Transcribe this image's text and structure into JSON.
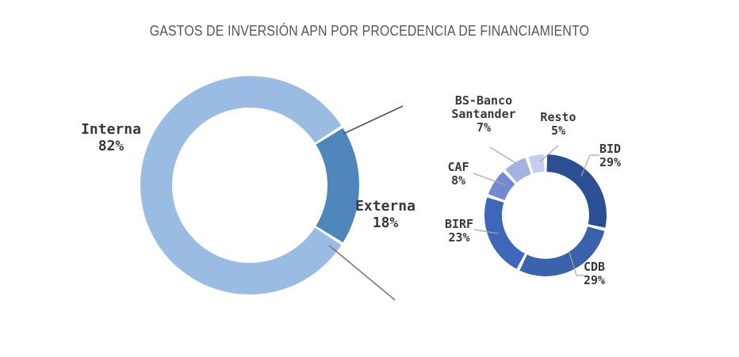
{
  "title": "GASTOS DE INVERSIÓN APN POR PROCEDENCIA DE FINANCIAMIENTO",
  "chart_data": [
    {
      "type": "pie",
      "subtype": "donut",
      "name": "gastos-por-procedencia",
      "unit": "%",
      "legend_position": "none",
      "segments": [
        {
          "label": "Interna",
          "value": 82,
          "pct": "82%",
          "color": "#9bbce2"
        },
        {
          "label": "Externa",
          "value": 18,
          "pct": "18%",
          "color": "#4d86bb"
        }
      ]
    },
    {
      "type": "pie",
      "subtype": "donut",
      "name": "detalle-financiamiento-externo",
      "unit": "%",
      "legend_position": "none",
      "segments": [
        {
          "label": "BID",
          "value": 29,
          "pct": "29%",
          "color": "#2c4f94"
        },
        {
          "label": "CDB",
          "value": 29,
          "pct": "29%",
          "color": "#3a63ac"
        },
        {
          "label": "BIRF",
          "value": 23,
          "pct": "23%",
          "color": "#3e66b9"
        },
        {
          "label": "CAF",
          "value": 8,
          "pct": "8%",
          "color": "#7489cf"
        },
        {
          "label": "BS-Banco Santander",
          "label_line1": "BS-Banco",
          "label_line2": "Santander",
          "value": 7,
          "pct": "7%",
          "color": "#a5b2e0"
        },
        {
          "label": "Resto",
          "value": 5,
          "pct": "5%",
          "color": "#c5cfec"
        }
      ]
    }
  ],
  "style": {
    "leader_line_color": "#a6a6a6",
    "connector_top_color": "#44546a",
    "connector_bottom_color": "#7a7a7a",
    "label_text_color": "#36393f",
    "title_text_color": "#53565c",
    "background": "#ffffff"
  }
}
